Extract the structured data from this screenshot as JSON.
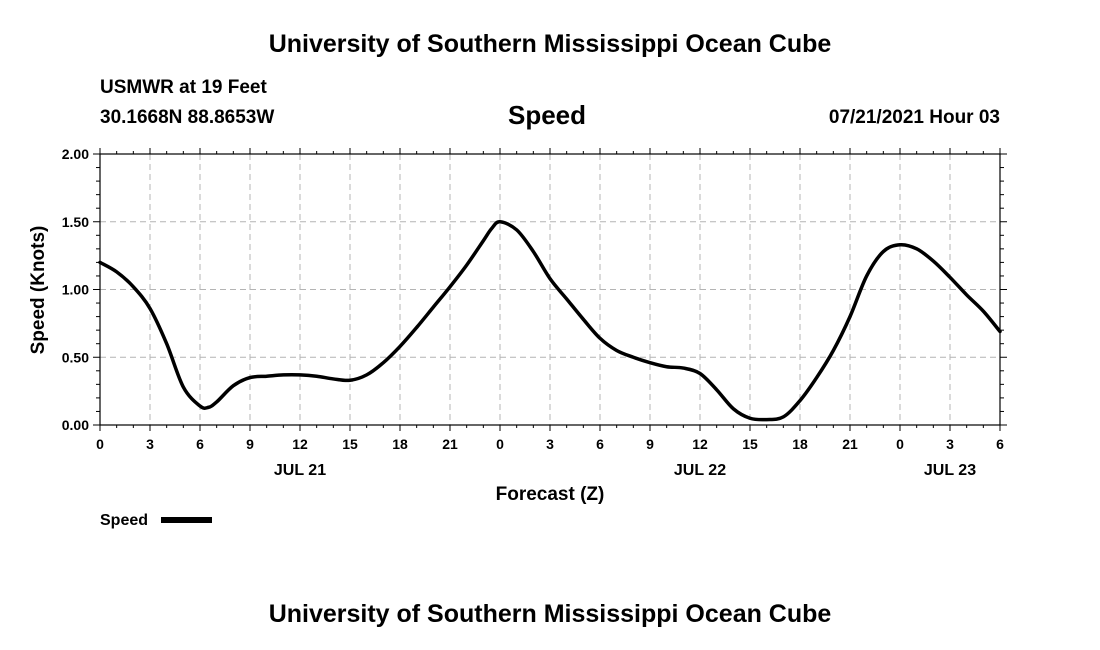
{
  "page": {
    "top_title": "University of Southern Mississippi Ocean Cube",
    "bottom_title": "University of Southern Mississippi Ocean Cube",
    "station_line": "USMWR at 19 Feet",
    "coords_line": "30.1668N  88.8653W",
    "chart_title": "Speed",
    "timestamp": "07/21/2021 Hour 03",
    "legend_label": "Speed"
  },
  "chart_data": {
    "type": "line",
    "title": "Speed",
    "xlabel": "Forecast (Z)",
    "ylabel": "Speed (Knots)",
    "ylim": [
      0,
      2.0
    ],
    "yticks": [
      "0.00",
      "0.50",
      "1.00",
      "1.50",
      "2.00"
    ],
    "xlim": [
      0,
      54
    ],
    "xtick_labels": [
      "0",
      "3",
      "6",
      "9",
      "12",
      "15",
      "18",
      "21",
      "0",
      "3",
      "6",
      "9",
      "12",
      "15",
      "18",
      "21",
      "0",
      "3",
      "6"
    ],
    "date_labels": [
      {
        "label": "JUL 21",
        "hour": 12
      },
      {
        "label": "JUL 22",
        "hour": 36
      },
      {
        "label": "JUL 23",
        "hour": 51
      }
    ],
    "grid": true,
    "legend": "bottom-left",
    "series": [
      {
        "name": "Speed",
        "color": "#000000",
        "x": [
          0,
          1,
          2,
          3,
          4,
          5,
          6,
          6.5,
          7,
          8,
          9,
          10,
          11,
          12,
          13,
          14,
          15,
          16,
          17,
          18,
          19,
          20,
          21,
          22,
          23,
          23.5,
          24,
          25,
          26,
          27,
          28,
          29,
          30,
          31,
          32,
          33,
          34,
          35,
          36,
          37,
          38,
          39,
          40,
          41,
          42,
          43,
          44,
          45,
          46,
          47,
          48,
          49,
          50,
          51,
          52,
          53,
          54
        ],
        "values": [
          1.2,
          1.13,
          1.02,
          0.86,
          0.6,
          0.28,
          0.14,
          0.13,
          0.17,
          0.29,
          0.35,
          0.36,
          0.37,
          0.37,
          0.36,
          0.34,
          0.33,
          0.37,
          0.46,
          0.58,
          0.72,
          0.87,
          1.02,
          1.18,
          1.36,
          1.45,
          1.5,
          1.44,
          1.28,
          1.08,
          0.93,
          0.78,
          0.64,
          0.55,
          0.5,
          0.46,
          0.43,
          0.42,
          0.38,
          0.26,
          0.12,
          0.05,
          0.04,
          0.06,
          0.18,
          0.35,
          0.55,
          0.8,
          1.1,
          1.28,
          1.33,
          1.3,
          1.21,
          1.09,
          0.96,
          0.84,
          0.69
        ]
      }
    ]
  }
}
